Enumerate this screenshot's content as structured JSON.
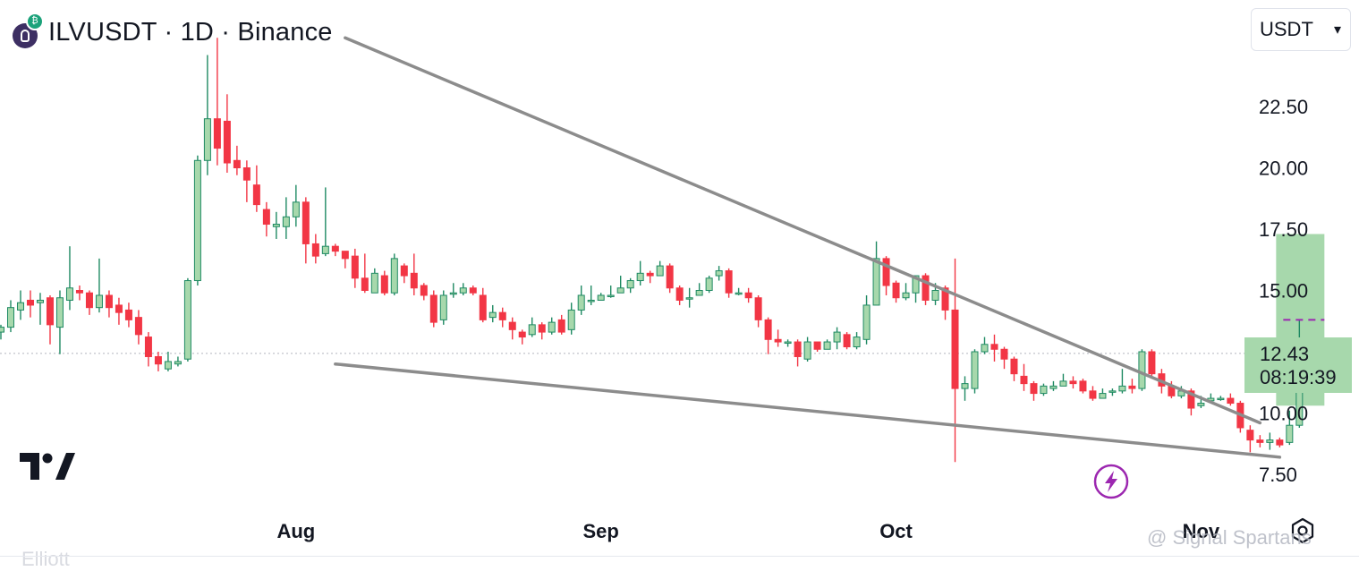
{
  "header": {
    "title": "ILVUSDT · 1D · Binance",
    "symbol_icon": "illuvium-token-icon",
    "badge_icon": "binance-badge-icon"
  },
  "currency_select": {
    "value": "USDT",
    "chevron": "▾"
  },
  "price_label": {
    "price": "12.43",
    "countdown": "08:19:39"
  },
  "watermark": "@ Signal Spartans",
  "bottom_hint": "Elliott",
  "colors": {
    "up_fill": "#a7d8ac",
    "up_stroke": "#1f8a63",
    "down": "#f23645",
    "trendline": "#8c8c8c",
    "projection_zone": "#a7d8ac",
    "target_line": "#9c27b0",
    "flash_icon": "#9c27b0"
  },
  "chart_data": {
    "type": "candlestick",
    "title": "ILVUSDT · 1D · Binance",
    "ylabel": "USDT",
    "ylim": [
      6.7,
      26.2
    ],
    "y_ticks": [
      7.5,
      10.0,
      12.5,
      15.0,
      17.5,
      20.0,
      22.5
    ],
    "y_tick_labels": [
      "7.50",
      "10.00",
      "12.50",
      "15.00",
      "17.50",
      "20.00",
      "22.50"
    ],
    "x_tick_labels": [
      {
        "label": "Aug",
        "date": "2025-08-01"
      },
      {
        "label": "Sep",
        "date": "2025-09-01"
      },
      {
        "label": "Oct",
        "date": "2025-10-01"
      },
      {
        "label": "Nov",
        "date": "2025-11-01"
      }
    ],
    "start_date": "2025-07-02",
    "candles": [
      [
        13.3,
        13.5,
        13.0,
        13.6
      ],
      [
        13.5,
        14.3,
        13.3,
        14.6
      ],
      [
        14.2,
        14.5,
        13.8,
        15.0
      ],
      [
        14.6,
        14.4,
        13.9,
        15.0
      ],
      [
        14.5,
        14.6,
        13.6,
        14.9
      ],
      [
        14.7,
        13.6,
        12.8,
        14.8
      ],
      [
        13.5,
        14.7,
        12.4,
        15.0
      ],
      [
        14.6,
        15.1,
        14.2,
        16.8
      ],
      [
        15.0,
        14.9,
        14.6,
        15.2
      ],
      [
        14.9,
        14.3,
        14.0,
        15.0
      ],
      [
        14.3,
        14.8,
        14.1,
        16.3
      ],
      [
        14.8,
        14.3,
        13.9,
        15.0
      ],
      [
        14.4,
        14.1,
        13.6,
        14.7
      ],
      [
        14.2,
        13.8,
        13.5,
        14.5
      ],
      [
        13.9,
        13.2,
        12.8,
        14.2
      ],
      [
        13.1,
        12.3,
        11.9,
        13.3
      ],
      [
        12.3,
        12.0,
        11.7,
        12.5
      ],
      [
        11.8,
        12.1,
        11.7,
        12.5
      ],
      [
        12.0,
        12.1,
        11.9,
        12.3
      ],
      [
        12.2,
        15.4,
        12.1,
        15.5
      ],
      [
        15.4,
        20.3,
        15.2,
        20.5
      ],
      [
        20.3,
        22.0,
        19.7,
        24.6
      ],
      [
        22.0,
        20.8,
        20.1,
        25.3
      ],
      [
        21.9,
        20.2,
        19.8,
        23.0
      ],
      [
        20.3,
        20.0,
        19.7,
        20.9
      ],
      [
        20.0,
        19.5,
        18.6,
        20.3
      ],
      [
        19.3,
        18.5,
        18.2,
        20.1
      ],
      [
        18.3,
        17.7,
        17.2,
        18.6
      ],
      [
        17.6,
        17.7,
        17.1,
        18.2
      ],
      [
        17.6,
        18.0,
        17.1,
        18.8
      ],
      [
        18.0,
        18.6,
        17.6,
        19.3
      ],
      [
        18.6,
        16.9,
        16.1,
        18.8
      ],
      [
        16.9,
        16.4,
        16.1,
        17.3
      ],
      [
        16.5,
        16.8,
        16.4,
        19.2
      ],
      [
        16.8,
        16.6,
        16.4,
        16.9
      ],
      [
        16.6,
        16.3,
        15.9,
        16.6
      ],
      [
        16.4,
        15.5,
        15.1,
        16.7
      ],
      [
        15.5,
        15.0,
        14.9,
        16.5
      ],
      [
        14.9,
        15.7,
        14.9,
        15.9
      ],
      [
        15.6,
        14.9,
        14.8,
        15.8
      ],
      [
        14.9,
        16.3,
        14.8,
        16.5
      ],
      [
        16.0,
        15.6,
        15.3,
        16.1
      ],
      [
        15.7,
        15.1,
        14.8,
        16.5
      ],
      [
        15.2,
        14.8,
        14.6,
        15.3
      ],
      [
        14.8,
        13.7,
        13.5,
        15.0
      ],
      [
        13.8,
        14.8,
        13.6,
        15.0
      ],
      [
        14.9,
        14.9,
        14.7,
        15.3
      ],
      [
        14.9,
        15.1,
        14.8,
        15.3
      ],
      [
        15.1,
        14.9,
        14.8,
        15.2
      ],
      [
        14.8,
        13.8,
        13.7,
        15.1
      ],
      [
        13.9,
        14.1,
        13.7,
        14.4
      ],
      [
        14.1,
        13.8,
        13.5,
        14.3
      ],
      [
        13.7,
        13.4,
        13.0,
        13.9
      ],
      [
        13.3,
        13.1,
        12.8,
        13.4
      ],
      [
        13.2,
        13.6,
        13.1,
        13.9
      ],
      [
        13.6,
        13.3,
        13.0,
        13.7
      ],
      [
        13.3,
        13.7,
        13.2,
        13.9
      ],
      [
        13.8,
        13.3,
        13.2,
        14.0
      ],
      [
        13.4,
        14.2,
        13.2,
        14.5
      ],
      [
        14.2,
        14.8,
        14.0,
        15.2
      ],
      [
        14.6,
        14.6,
        14.4,
        15.2
      ],
      [
        14.6,
        14.8,
        14.6,
        14.9
      ],
      [
        14.8,
        14.8,
        14.7,
        15.2
      ],
      [
        14.9,
        15.1,
        14.9,
        15.6
      ],
      [
        15.1,
        15.4,
        14.9,
        15.5
      ],
      [
        15.4,
        15.7,
        15.2,
        16.2
      ],
      [
        15.7,
        15.6,
        15.3,
        15.8
      ],
      [
        15.6,
        16.0,
        15.7,
        16.2
      ],
      [
        16.0,
        15.1,
        14.9,
        16.1
      ],
      [
        15.1,
        14.6,
        14.4,
        15.2
      ],
      [
        14.7,
        14.7,
        14.3,
        15.1
      ],
      [
        14.8,
        15.0,
        14.8,
        15.3
      ],
      [
        15.0,
        15.5,
        14.9,
        15.6
      ],
      [
        15.6,
        15.8,
        15.4,
        16.0
      ],
      [
        15.8,
        14.9,
        14.7,
        15.9
      ],
      [
        14.9,
        14.9,
        14.8,
        15.1
      ],
      [
        14.9,
        14.7,
        14.5,
        15.1
      ],
      [
        14.7,
        13.8,
        13.5,
        14.8
      ],
      [
        13.8,
        13.0,
        12.4,
        13.9
      ],
      [
        13.0,
        12.9,
        12.7,
        13.4
      ],
      [
        12.9,
        12.9,
        12.7,
        13.0
      ],
      [
        12.9,
        12.3,
        11.9,
        13.0
      ],
      [
        12.2,
        12.9,
        12.1,
        13.1
      ],
      [
        12.9,
        12.6,
        12.5,
        12.9
      ],
      [
        12.6,
        12.9,
        12.6,
        13.0
      ],
      [
        12.9,
        13.3,
        12.6,
        13.5
      ],
      [
        13.2,
        12.7,
        12.6,
        13.3
      ],
      [
        12.7,
        13.1,
        12.6,
        13.3
      ],
      [
        13.0,
        14.4,
        12.8,
        14.8
      ],
      [
        14.4,
        16.3,
        14.4,
        17.0
      ],
      [
        16.3,
        15.2,
        14.8,
        16.4
      ],
      [
        15.3,
        14.7,
        14.5,
        15.4
      ],
      [
        14.7,
        14.9,
        14.6,
        15.3
      ],
      [
        14.9,
        15.6,
        14.5,
        15.6
      ],
      [
        15.6,
        14.6,
        14.4,
        15.7
      ],
      [
        14.6,
        15.0,
        14.4,
        15.3
      ],
      [
        15.1,
        14.2,
        13.8,
        15.2
      ],
      [
        14.2,
        11.0,
        8.0,
        16.3
      ],
      [
        11.0,
        11.2,
        10.5,
        11.5
      ],
      [
        11.0,
        12.5,
        10.8,
        12.6
      ],
      [
        12.5,
        12.8,
        12.4,
        13.1
      ],
      [
        12.8,
        12.6,
        12.1,
        13.2
      ],
      [
        12.6,
        12.2,
        11.8,
        12.7
      ],
      [
        12.2,
        11.6,
        11.3,
        12.3
      ],
      [
        11.5,
        11.2,
        10.9,
        12.0
      ],
      [
        11.2,
        10.8,
        10.5,
        11.3
      ],
      [
        10.8,
        11.1,
        10.7,
        11.2
      ],
      [
        11.0,
        11.1,
        10.9,
        11.3
      ],
      [
        11.1,
        11.3,
        11.1,
        11.6
      ],
      [
        11.3,
        11.2,
        11.0,
        11.5
      ],
      [
        11.3,
        10.9,
        10.8,
        11.4
      ],
      [
        10.9,
        10.6,
        10.5,
        11.1
      ],
      [
        10.6,
        10.8,
        10.6,
        11.0
      ],
      [
        10.9,
        10.9,
        10.7,
        11.0
      ],
      [
        10.9,
        11.1,
        10.8,
        11.8
      ],
      [
        11.1,
        11.0,
        10.8,
        11.4
      ],
      [
        11.0,
        12.5,
        10.9,
        12.6
      ],
      [
        12.5,
        11.6,
        11.4,
        12.6
      ],
      [
        11.6,
        11.1,
        10.8,
        11.8
      ],
      [
        11.1,
        10.7,
        10.6,
        11.3
      ],
      [
        10.7,
        10.9,
        10.6,
        11.1
      ],
      [
        10.9,
        10.2,
        9.9,
        11.0
      ],
      [
        10.3,
        10.4,
        10.2,
        10.7
      ],
      [
        10.5,
        10.6,
        10.5,
        10.8
      ],
      [
        10.6,
        10.6,
        10.5,
        10.7
      ],
      [
        10.6,
        10.4,
        10.3,
        10.8
      ],
      [
        10.4,
        9.4,
        9.2,
        10.5
      ],
      [
        9.3,
        8.9,
        8.4,
        9.5
      ],
      [
        8.9,
        8.8,
        8.6,
        9.1
      ],
      [
        8.8,
        8.9,
        8.5,
        9.2
      ],
      [
        8.9,
        8.7,
        8.6,
        9.0
      ],
      [
        8.8,
        9.5,
        8.7,
        10.1
      ],
      [
        9.5,
        12.4,
        9.4,
        13.8
      ]
    ],
    "candle_fields": [
      "open",
      "close",
      "low",
      "high"
    ],
    "last_price": 12.43,
    "trendlines": [
      {
        "role": "upper",
        "from": {
          "date": "2025-08-06",
          "price": 25.3
        },
        "to": {
          "date": "2025-11-07",
          "price": 9.6
        }
      },
      {
        "role": "lower",
        "from": {
          "date": "2025-08-05",
          "price": 12.0
        },
        "to": {
          "date": "2025-11-09",
          "price": 8.2
        }
      }
    ],
    "projection_zone": {
      "from": "2025-11-09",
      "to": "2025-11-13",
      "low": 10.3,
      "high": 17.3
    },
    "target_price": 13.8,
    "grid": false,
    "legend": "none"
  }
}
